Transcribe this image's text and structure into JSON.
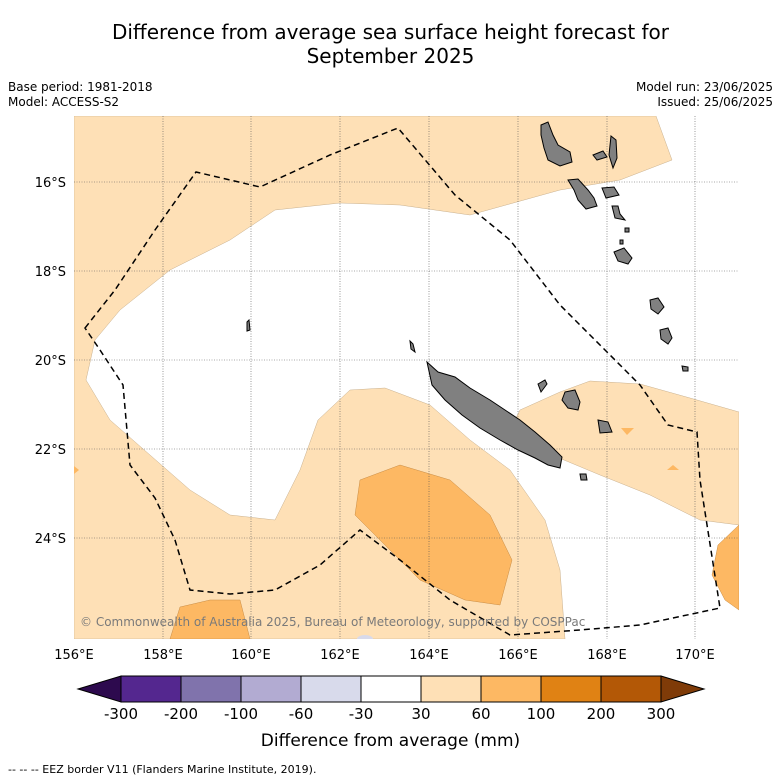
{
  "title_line1": "Difference from average sea surface height forecast for",
  "title_line2": "September 2025",
  "base_period": "Base period: 1981-2018",
  "model": "Model: ACCESS-S2",
  "model_run": "Model run: 23/06/2025",
  "issued": "Issued: 25/06/2025",
  "lat_labels": [
    "16°S",
    "18°S",
    "20°S",
    "22°S",
    "24°S"
  ],
  "lon_labels": [
    "156°E",
    "158°E",
    "160°E",
    "162°E",
    "164°E",
    "166°E",
    "168°E",
    "170°E"
  ],
  "attribution": "© Commonwealth of Australia 2025, Bureau of Meteorology, supported by COSPPac",
  "colorbar": {
    "title": "Difference from average (mm)",
    "tick_labels": [
      "-300",
      "-200",
      "-100",
      "-60",
      "-30",
      "30",
      "60",
      "100",
      "200",
      "300"
    ],
    "colors": [
      "#2d0a4e",
      "#54278f",
      "#8073ac",
      "#b2abd2",
      "#d8daeb",
      "#ffffff",
      "#fee0b6",
      "#fdb863",
      "#e08214",
      "#b35806",
      "#7f3b08"
    ]
  },
  "footer": "--  --  -- EEZ border V11 (Flanders Marine Institute, 2019)."
}
